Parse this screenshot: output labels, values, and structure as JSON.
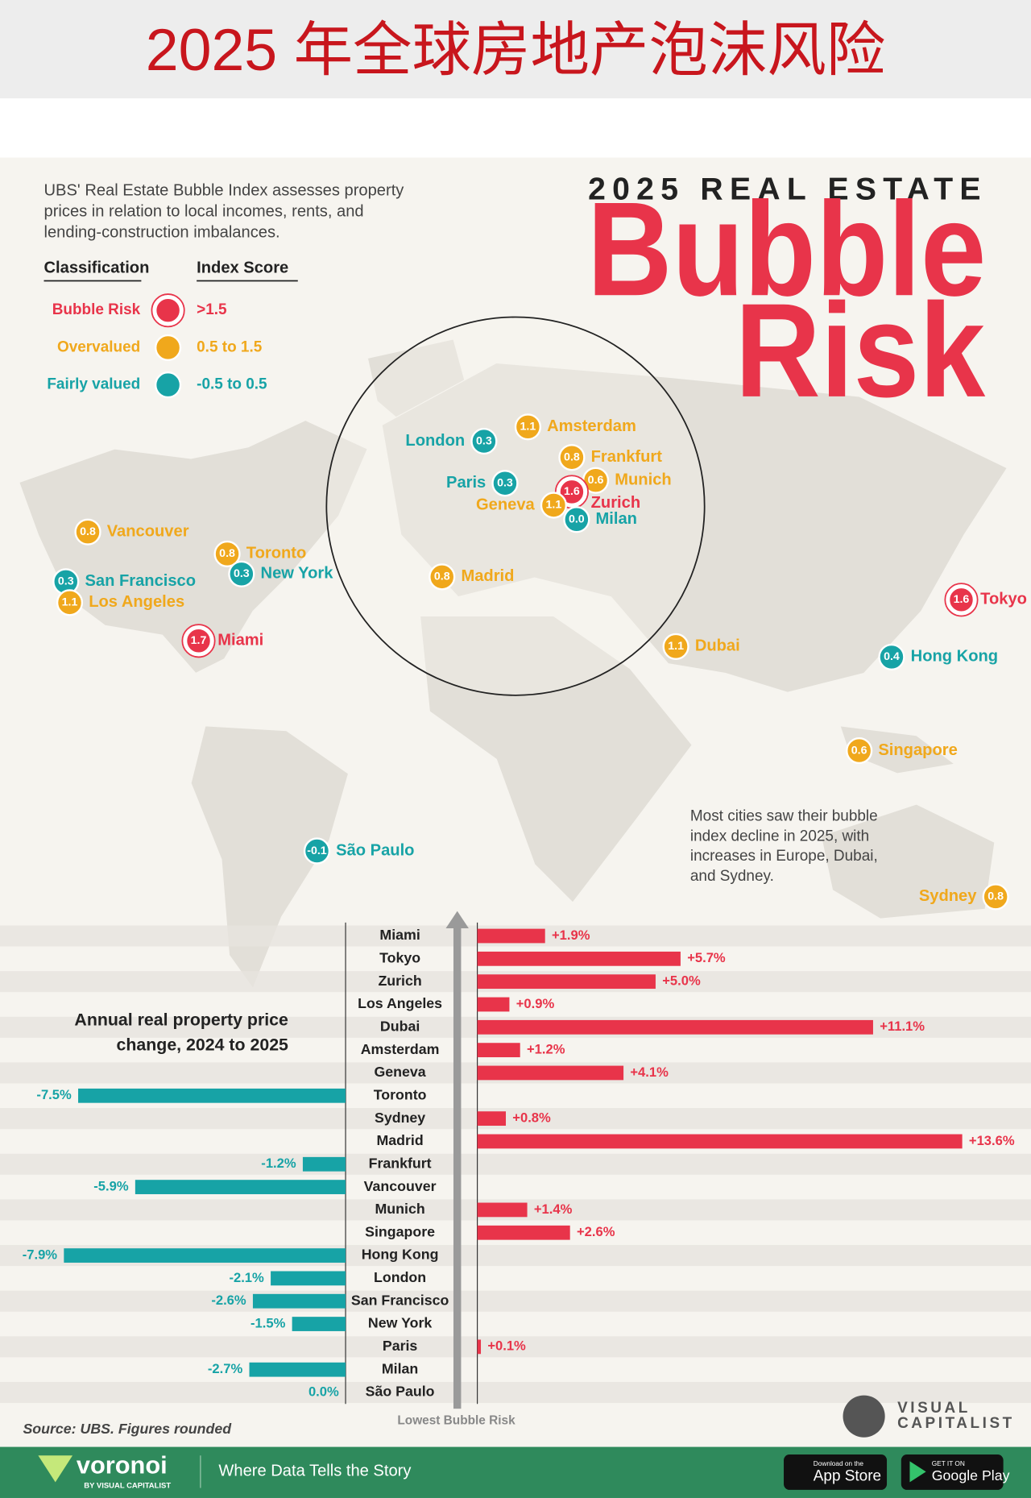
{
  "header": {
    "title": "2025 年全球房地产泡沫风险"
  },
  "infographic": {
    "kicker": "2025 REAL ESTATE",
    "title_line1": "Bubble",
    "title_line2": "Risk",
    "description": [
      "UBS' Real Estate Bubble Index assesses property",
      "prices in relation to local incomes, rents, and",
      "lending-construction imbalances."
    ]
  },
  "legend": {
    "classification_header": "Classification",
    "score_header": "Index Score",
    "items": [
      {
        "label": "Bubble Risk",
        "range": ">1.5",
        "color": "#e8344a"
      },
      {
        "label": "Overvalued",
        "range": "0.5 to 1.5",
        "color": "#f0a81c"
      },
      {
        "label": "Fairly valued",
        "range": "-0.5 to 0.5",
        "color": "#17a3a6"
      }
    ]
  },
  "map": {
    "cities": [
      {
        "name": "Amsterdam",
        "score": 1.1,
        "class": 1
      },
      {
        "name": "London",
        "score": 0.3,
        "class": 2
      },
      {
        "name": "Frankfurt",
        "score": 0.8,
        "class": 1
      },
      {
        "name": "Munich",
        "score": 0.6,
        "class": 1
      },
      {
        "name": "Paris",
        "score": 0.3,
        "class": 2
      },
      {
        "name": "Zurich",
        "score": 1.6,
        "class": 0
      },
      {
        "name": "Geneva",
        "score": 1.1,
        "class": 1
      },
      {
        "name": "Milan",
        "score": 0,
        "score_label": "0.0",
        "class": 2
      },
      {
        "name": "Madrid",
        "score": 0.8,
        "class": 1
      },
      {
        "name": "Vancouver",
        "score": 0.8,
        "class": 1
      },
      {
        "name": "Toronto",
        "score": 0.8,
        "class": 1
      },
      {
        "name": "New York",
        "score": 0.3,
        "class": 2
      },
      {
        "name": "San Francisco",
        "score": 0.3,
        "class": 2
      },
      {
        "name": "Los Angeles",
        "score": 1.1,
        "class": 1
      },
      {
        "name": "Miami",
        "score": 1.7,
        "class": 0
      },
      {
        "name": "Tokyo",
        "score": 1.6,
        "class": 0
      },
      {
        "name": "Dubai",
        "score": 1.1,
        "class": 1
      },
      {
        "name": "Hong Kong",
        "score": 0.4,
        "class": 2
      },
      {
        "name": "Singapore",
        "score": 0.6,
        "class": 1
      },
      {
        "name": "São Paulo",
        "score": -0.1,
        "class": 2
      },
      {
        "name": "Sydney",
        "score": 0.8,
        "class": 1
      }
    ],
    "annotation": [
      "Most cities saw their bubble",
      "index decline in 2025, with",
      "increases in Europe, Dubai,",
      "and Sydney."
    ]
  },
  "chart_data": {
    "type": "bar",
    "orientation": "horizontal",
    "title": [
      "Annual real property price",
      "change, 2024 to 2025"
    ],
    "categories": [
      "Miami",
      "Tokyo",
      "Zurich",
      "Los Angeles",
      "Dubai",
      "Amsterdam",
      "Geneva",
      "Toronto",
      "Sydney",
      "Madrid",
      "Frankfurt",
      "Vancouver",
      "Munich",
      "Singapore",
      "Hong Kong",
      "London",
      "San Francisco",
      "New York",
      "Paris",
      "Milan",
      "São Paulo"
    ],
    "values": [
      1.9,
      5.7,
      5.0,
      0.9,
      11.1,
      1.2,
      4.1,
      -7.5,
      0.8,
      13.6,
      -1.2,
      -5.9,
      1.4,
      2.6,
      -7.9,
      -2.1,
      -2.6,
      -1.5,
      0.1,
      -2.7,
      0.0
    ],
    "value_labels": [
      "+1.9%",
      "+5.7%",
      "+5.0%",
      "+0.9%",
      "+11.1%",
      "+1.2%",
      "+4.1%",
      "-7.5%",
      "+0.8%",
      "+13.6%",
      "-1.2%",
      "-5.9%",
      "+1.4%",
      "+2.6%",
      "-7.9%",
      "-2.1%",
      "-2.6%",
      "-1.5%",
      "+0.1%",
      "-2.7%",
      "0.0%"
    ],
    "positive_color": "#e8344a",
    "negative_color": "#17a3a6",
    "arrow_label": "Lowest Bubble Risk"
  },
  "source": "Source: UBS. Figures rounded",
  "logo": {
    "line1": "VISUAL",
    "line2": "CAPITALIST"
  },
  "footer": {
    "brand": "voronoi",
    "brand_sub": "BY VISUAL CAPITALIST",
    "tagline": "Where Data Tells the Story",
    "app_store": [
      "Download on the",
      "App Store"
    ],
    "google_play": [
      "GET IT ON",
      "Google Play"
    ]
  }
}
